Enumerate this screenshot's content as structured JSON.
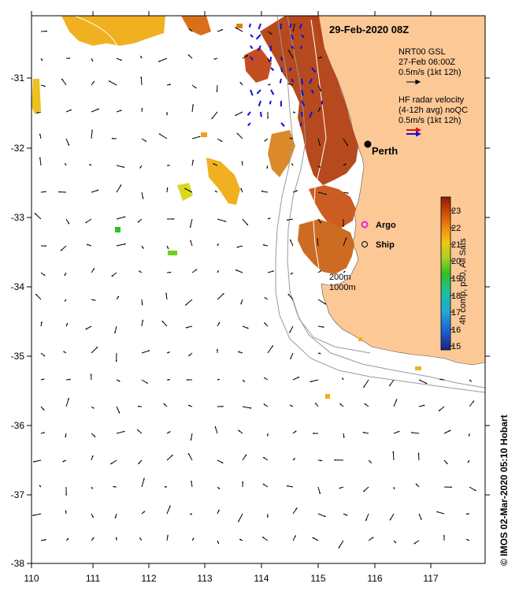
{
  "title": "29-Feb-2020 08Z",
  "x_ticks": [
    "110",
    "111",
    "112",
    "113",
    "114",
    "115",
    "116",
    "117"
  ],
  "y_ticks": [
    "-31",
    "-32",
    "-33",
    "-34",
    "-35",
    "-36",
    "-37",
    "-38"
  ],
  "legend": {
    "gsl_line1": "NRT00 GSL",
    "gsl_line2": "27-Feb 06:00Z",
    "gsl_line3": "0.5m/s (1kt 12h)",
    "hf_line1": "HF radar velocity",
    "hf_line2": "(4-12h avg) noQC",
    "hf_line3": "0.5m/s (1kt 12h)"
  },
  "places": {
    "perth": "Perth",
    "argo": "Argo",
    "ship": "Ship",
    "depth_200": "200m",
    "depth_1000": "1000m"
  },
  "colorbar": {
    "ticks": [
      "23",
      "22",
      "21",
      "20",
      "19",
      "18",
      "17",
      "16",
      "15"
    ],
    "title": "4h comp, p50, All Sats"
  },
  "credit": "© IMOS 02-Mar-2020 05:10 Hobart",
  "colors": {
    "land": "#fcc896",
    "sst_warm": "#b03a0a",
    "sst_mid": "#d5700e",
    "hf_blue": "#1010e0",
    "hf_red": "#e01010",
    "argo": "#e020e0"
  }
}
